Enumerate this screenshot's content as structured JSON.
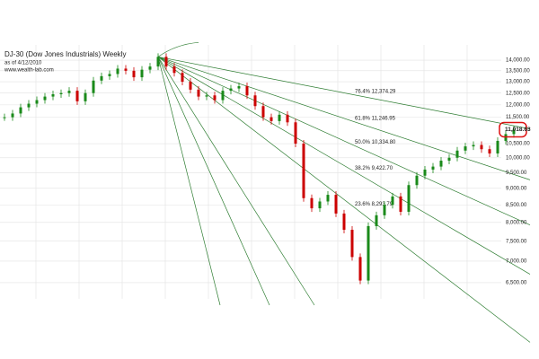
{
  "chart_data": {
    "type": "candle",
    "title": "DJ-30 (Dow Jones Industrials) Weekly",
    "subtitle": "as of 4/12/2010",
    "source": "www.wealth-lab.com",
    "values": [
      11500,
      11650,
      11900,
      12050,
      12200,
      12350,
      12450,
      12500,
      12600,
      12150,
      12500,
      13050,
      13250,
      13350,
      13600,
      13500,
      13200,
      13550,
      13700,
      14164,
      13700,
      13400,
      13000,
      12650,
      12350,
      12400,
      12200,
      12600,
      12700,
      12800,
      12400,
      11950,
      11500,
      11350,
      11600,
      11300,
      10500,
      8700,
      8400,
      8600,
      8800,
      8250,
      7800,
      7100,
      6547,
      7900,
      8200,
      8500,
      8750,
      8300,
      9100,
      9400,
      9600,
      9700,
      9900,
      10000,
      10250,
      10400,
      10450,
      10300,
      10150,
      10600,
      10850,
      11018.63
    ],
    "last_label": "11,018.63",
    "up_color": "#1a8a1a",
    "down_color": "#cc0000",
    "fan_color": "#2e7d32",
    "fan_levels": [
      {
        "value": 12374.29,
        "label": "76.4% 12,374.29"
      },
      {
        "value": 11246.95,
        "label": "61.8% 11,246.95"
      },
      {
        "value": 10334.8,
        "label": "50.0% 10,334.80"
      },
      {
        "value": 9422.7,
        "label": "38.2% 9,422.70"
      },
      {
        "value": 8293.79,
        "label": "23.6% 8,293.79"
      }
    ],
    "log_scale": true,
    "grid": true,
    "ylim": [
      6300,
      14400
    ],
    "yticks": [
      {
        "value": 6500,
        "label": "6,500.00"
      },
      {
        "value": 7000,
        "label": "7,000.00"
      },
      {
        "value": 7500,
        "label": "7,500.00"
      },
      {
        "value": 8000,
        "label": "8,000.00"
      },
      {
        "value": 8500,
        "label": "8,500.00"
      },
      {
        "value": 9000,
        "label": "9,000.00"
      },
      {
        "value": 9500,
        "label": "9,500.00"
      },
      {
        "value": 10000,
        "label": "10,000.00"
      },
      {
        "value": 10500,
        "label": "10,500.00"
      },
      {
        "value": 11500,
        "label": "11,500.00"
      },
      {
        "value": 12000,
        "label": "12,000.00"
      },
      {
        "value": 12500,
        "label": "12,500.00"
      },
      {
        "value": 13000,
        "label": "13,000.00"
      },
      {
        "value": 13500,
        "label": "13,500.00"
      },
      {
        "value": 14000,
        "label": "14,000.00"
      }
    ]
  }
}
